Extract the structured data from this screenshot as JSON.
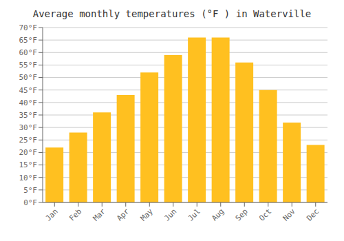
{
  "chart_data": {
    "type": "bar",
    "title": "Average monthly temperatures (°F ) in Waterville",
    "categories": [
      "Jan",
      "Feb",
      "Mar",
      "Apr",
      "May",
      "Jun",
      "Jul",
      "Aug",
      "Sep",
      "Oct",
      "Nov",
      "Dec"
    ],
    "values": [
      22,
      28,
      36,
      43,
      52,
      59,
      66,
      66,
      56,
      45,
      32,
      23
    ],
    "color": "#FFC020",
    "ylim": [
      0,
      70
    ],
    "yticks": [
      {
        "value": 0,
        "label": "0°F"
      },
      {
        "value": 5,
        "label": "5°F"
      },
      {
        "value": 10,
        "label": "10°F"
      },
      {
        "value": 15,
        "label": "15°F"
      },
      {
        "value": 20,
        "label": "20°F"
      },
      {
        "value": 25,
        "label": "25°F"
      },
      {
        "value": 30,
        "label": "30°F"
      },
      {
        "value": 35,
        "label": "35°F"
      },
      {
        "value": 40,
        "label": "40°F"
      },
      {
        "value": 45,
        "label": "45°F"
      },
      {
        "value": 50,
        "label": "50°F"
      },
      {
        "value": 55,
        "label": "55°F"
      },
      {
        "value": 60,
        "label": "60°F"
      },
      {
        "value": 65,
        "label": "65°F"
      },
      {
        "value": 70,
        "label": "70°F"
      }
    ],
    "grid": true
  }
}
